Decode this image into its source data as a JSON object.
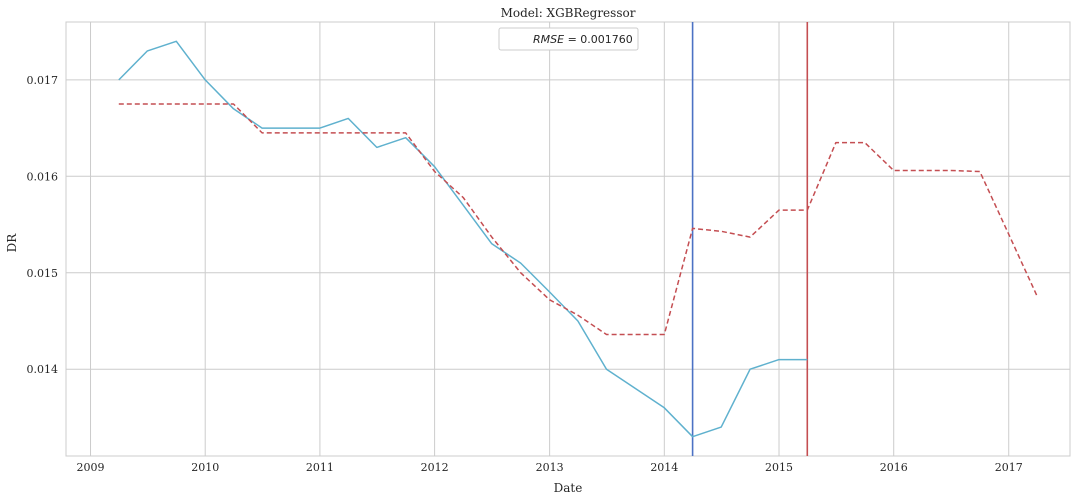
{
  "chart_data": {
    "type": "line",
    "title": "Model: XGBRegressor",
    "xlabel": "Date",
    "ylabel": "DR",
    "xlim": [
      "2008-10-15",
      "2017-07-15"
    ],
    "ylim": [
      0.0131,
      0.0176
    ],
    "x_ticks": [
      "2009",
      "2010",
      "2011",
      "2012",
      "2013",
      "2014",
      "2015",
      "2016",
      "2017"
    ],
    "y_ticks": [
      "0.014",
      "0.015",
      "0.016",
      "0.017"
    ],
    "grid": true,
    "legend": {
      "position": "top-center",
      "italic_part": "RMSE",
      "rest": " = 0.001760"
    },
    "series": [
      {
        "style": "solid",
        "color": "#5fb1ce",
        "x": [
          "2009-04-01",
          "2009-07-01",
          "2009-10-01",
          "2010-01-01",
          "2010-04-01",
          "2010-07-01",
          "2010-10-01",
          "2011-01-01",
          "2011-04-01",
          "2011-07-01",
          "2011-10-01",
          "2012-01-01",
          "2012-04-01",
          "2012-07-01",
          "2012-10-01",
          "2013-01-01",
          "2013-04-01",
          "2013-07-01",
          "2013-10-01",
          "2014-01-01",
          "2014-04-01",
          "2014-07-01",
          "2014-10-01",
          "2015-01-01",
          "2015-04-01"
        ],
        "y": [
          0.017,
          0.0173,
          0.0174,
          0.017,
          0.0167,
          0.0165,
          0.0165,
          0.0165,
          0.0166,
          0.0163,
          0.0164,
          0.0161,
          0.0157,
          0.0153,
          0.0151,
          0.0148,
          0.0145,
          0.014,
          0.0138,
          0.0136,
          0.0133,
          0.0134,
          0.014,
          0.0141,
          0.0141
        ]
      },
      {
        "style": "dashed",
        "color": "#c44e52",
        "x": [
          "2009-04-01",
          "2009-07-01",
          "2009-10-01",
          "2010-01-01",
          "2010-04-01",
          "2010-07-01",
          "2010-10-01",
          "2011-01-01",
          "2011-04-01",
          "2011-07-01",
          "2011-10-01",
          "2012-01-01",
          "2012-04-01",
          "2012-07-01",
          "2012-10-01",
          "2013-01-01",
          "2013-04-01",
          "2013-07-01",
          "2013-10-01",
          "2014-01-01",
          "2014-04-01",
          "2014-07-01",
          "2014-10-01",
          "2015-01-01",
          "2015-04-01",
          "2015-07-01",
          "2015-10-01",
          "2016-01-01",
          "2016-04-01",
          "2016-07-01",
          "2016-10-01",
          "2017-01-01",
          "2017-04-01"
        ],
        "y": [
          0.01675,
          0.01675,
          0.01675,
          0.01675,
          0.01675,
          0.01645,
          0.01645,
          0.01645,
          0.01645,
          0.01645,
          0.01645,
          0.01605,
          0.01578,
          0.01537,
          0.015,
          0.01472,
          0.01456,
          0.01436,
          0.01436,
          0.01436,
          0.01546,
          0.01543,
          0.01537,
          0.01565,
          0.01565,
          0.01635,
          0.01635,
          0.01606,
          0.01606,
          0.01606,
          0.01605,
          0.0154,
          0.01476
        ]
      }
    ],
    "vertical_lines": [
      {
        "x": "2014-04-01",
        "color": "#4c72c4"
      },
      {
        "x": "2015-04-01",
        "color": "#c44e52"
      }
    ]
  }
}
